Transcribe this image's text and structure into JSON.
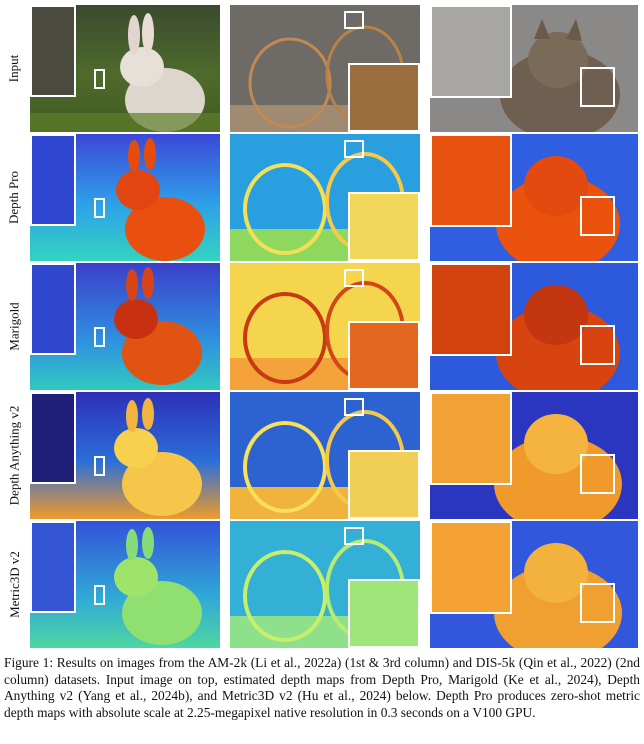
{
  "figure": {
    "rows": [
      {
        "label": "Input"
      },
      {
        "label": "Depth Pro"
      },
      {
        "label": "Marigold"
      },
      {
        "label": "Depth Anything v2"
      },
      {
        "label": "Metric3D v2"
      }
    ],
    "caption": "Figure 1: Results on images from the AM-2k (Li et al., 2022a) (1st & 3rd column) and DIS-5k (Qin et al., 2022) (2nd column) datasets. Input image on top, estimated depth maps from Depth Pro, Marigold (Ke et al., 2024), Depth Anything v2 (Yang et al., 2024b), and Metric3D v2 (Hu et al., 2024) below. Depth Pro produces zero-shot metric depth maps with absolute scale at 2.25-megapixel native resolution in 0.3 seconds on a V100 GPU."
  },
  "colors": {
    "depth_far": "#2b3fd6",
    "depth_mid": "#2fd2c8",
    "depth_near": "#f25c10",
    "depth_yellow": "#f4e04a"
  }
}
